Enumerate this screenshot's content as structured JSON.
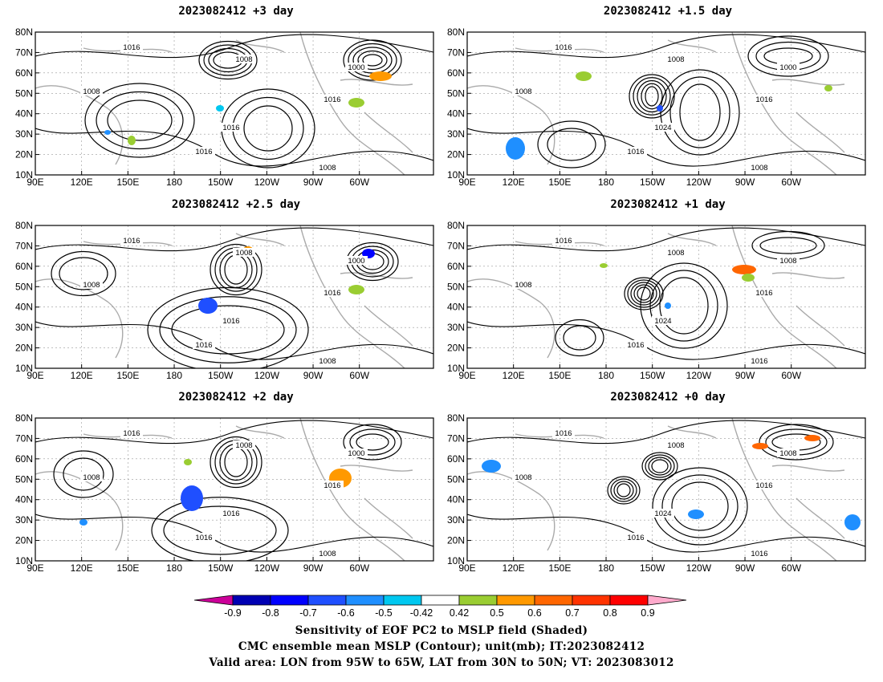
{
  "panels": [
    {
      "title": "2023082412 +3 day",
      "lows": [
        "1008",
        "1008",
        "1000"
      ],
      "highs": [
        "1016",
        "1016",
        "1016",
        "1016"
      ],
      "bottom": "1008"
    },
    {
      "title": "2023082412 +1.5 day",
      "lows": [
        "1008",
        "1008",
        "1000"
      ],
      "highs": [
        "1016",
        "1016",
        "1016",
        "1024"
      ],
      "bottom": "1008"
    },
    {
      "title": "2023082412 +2.5 day",
      "lows": [
        "1008",
        "1008",
        "1000"
      ],
      "highs": [
        "1016",
        "1016",
        "1016",
        "1016"
      ],
      "bottom": "1008"
    },
    {
      "title": "2023082412 +1 day",
      "lows": [
        "1008",
        "1008",
        "1008"
      ],
      "highs": [
        "1016",
        "1016",
        "1016",
        "1024"
      ],
      "bottom": "1016"
    },
    {
      "title": "2023082412 +2 day",
      "lows": [
        "1008",
        "1008",
        "1000"
      ],
      "highs": [
        "1016",
        "1016",
        "1016",
        "1016"
      ],
      "bottom": "1008"
    },
    {
      "title": "2023082412 +0 day",
      "lows": [
        "1008",
        "1008",
        "1008"
      ],
      "highs": [
        "1016",
        "1016",
        "1016",
        "1024"
      ],
      "bottom": "1016"
    }
  ],
  "axes": {
    "lat_labels": [
      "80N",
      "70N",
      "60N",
      "50N",
      "40N",
      "30N",
      "20N",
      "10N"
    ],
    "lon_labels": [
      "90E",
      "120E",
      "150E",
      "180",
      "150W",
      "120W",
      "90W",
      "60W"
    ]
  },
  "colorbar": {
    "ticks": [
      "-0.9",
      "-0.8",
      "-0.7",
      "-0.6",
      "-0.5",
      "-0.42",
      "0.42",
      "0.5",
      "0.6",
      "0.7",
      "0.8",
      "0.9"
    ],
    "colors": [
      "#cc0099",
      "#0000b3",
      "#0000ff",
      "#1f4fff",
      "#1f8fff",
      "#00c8f0",
      "#ffffff",
      "#9acd32",
      "#ff9900",
      "#ff6600",
      "#ff3300",
      "#ff0000",
      "#ffaacc"
    ]
  },
  "footer": {
    "line1": "Sensitivity of EOF PC2 to MSLP field (Shaded)",
    "line2": "CMC ensemble mean MSLP (Contour); unit(mb); IT:2023082412",
    "line3": "Valid area: LON from 95W to 65W, LAT from 30N to 50N; VT: 2023083012"
  }
}
